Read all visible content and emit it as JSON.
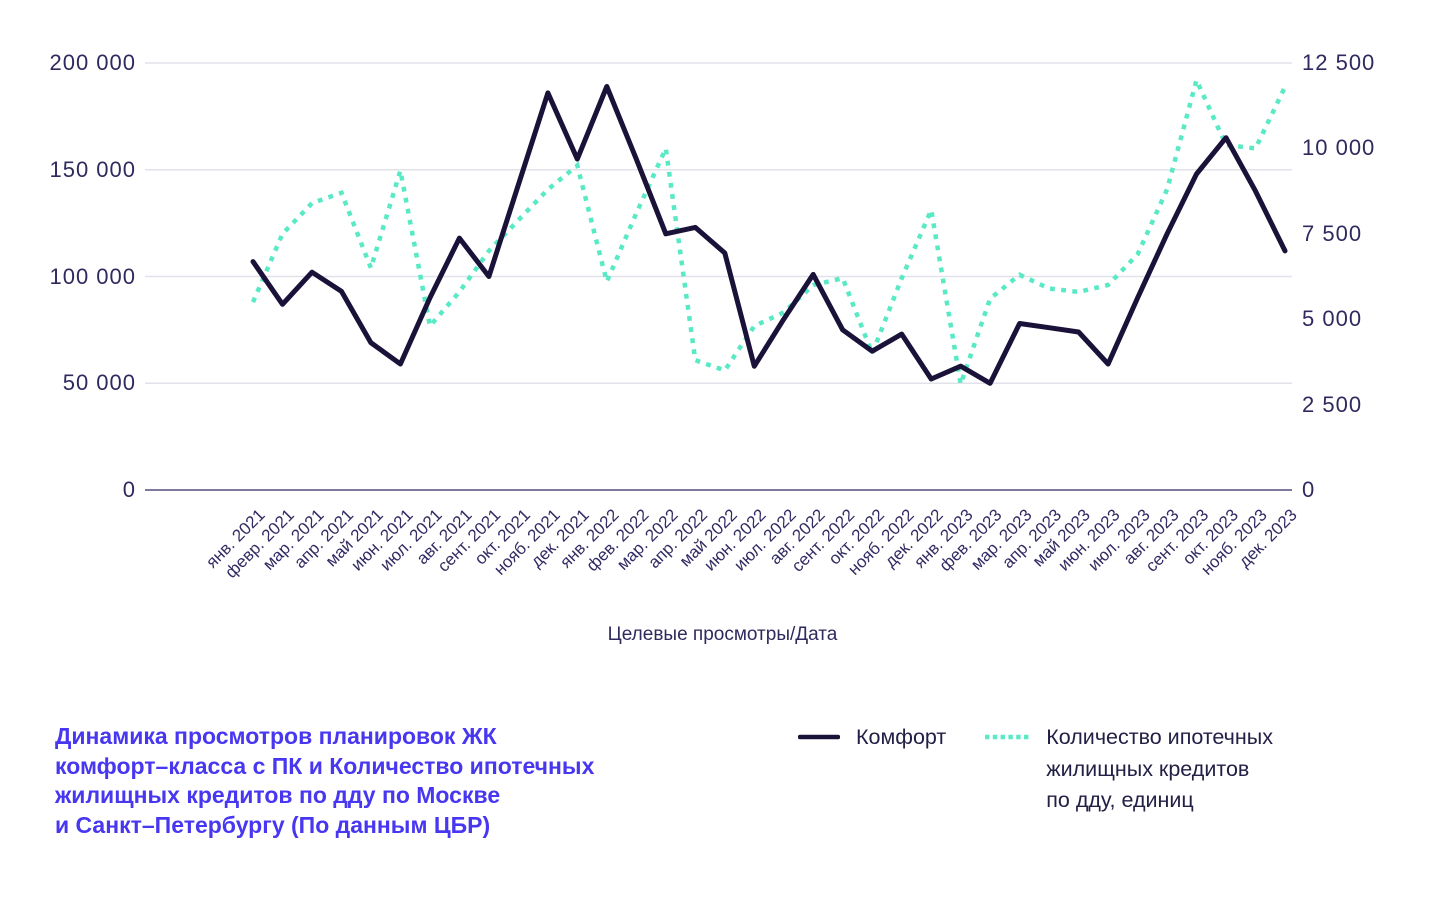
{
  "chart_data": {
    "type": "line",
    "title": "Динамика просмотров планировок ЖК комфорт–класса с ПК и Количество ипотечных жилищных кредитов по дду по Москве и Санкт–Петербургу (По данным ЦБР)",
    "xlabel": "Целевые просмотры/Дата",
    "grid": true,
    "legend_position": "bottom",
    "categories": [
      "янв. 2021",
      "февр. 2021",
      "мар. 2021",
      "апр. 2021",
      "май 2021",
      "июн. 2021",
      "июл. 2021",
      "авг. 2021",
      "сент. 2021",
      "окт. 2021",
      "нояб. 2021",
      "дек. 2021",
      "янв. 2022",
      "фев. 2022",
      "мар. 2022",
      "апр. 2022",
      "май 2022",
      "июн. 2022",
      "июл. 2022",
      "авг. 2022",
      "сент. 2022",
      "окт. 2022",
      "нояб. 2022",
      "дек. 2022",
      "янв. 2023",
      "фев. 2023",
      "мар. 2023",
      "апр. 2023",
      "май 2023",
      "июн. 2023",
      "июл. 2023",
      "авг. 2023",
      "сент. 2023",
      "окт. 2023",
      "нояб. 2023",
      "дек. 2023"
    ],
    "series": [
      {
        "name": "Комфорт",
        "axis": "left",
        "style": "solid",
        "color": "#1a1238",
        "values": [
          107000,
          87000,
          102000,
          93000,
          69000,
          59000,
          90000,
          118000,
          100000,
          143000,
          186000,
          155000,
          189000,
          155000,
          120000,
          123000,
          111000,
          58000,
          80000,
          101000,
          75000,
          65000,
          73000,
          52000,
          58000,
          50000,
          78000,
          76000,
          74000,
          59000,
          90000,
          120000,
          148000,
          165000,
          140000,
          112000
        ]
      },
      {
        "name": "Количество ипотечных жилищных кредитов по дду, единиц",
        "axis": "right",
        "style": "dotted",
        "color": "#59e9c5",
        "values": [
          5500,
          7500,
          8400,
          8700,
          6500,
          9350,
          4800,
          5800,
          7000,
          7900,
          8800,
          9500,
          6100,
          8100,
          10000,
          3800,
          3500,
          4800,
          5200,
          6000,
          6200,
          4000,
          6200,
          8200,
          3100,
          5600,
          6300,
          5900,
          5800,
          6000,
          6900,
          8800,
          12000,
          10100,
          10000,
          11800
        ]
      }
    ],
    "left_axis": {
      "max": 200000,
      "ticks": [
        "200 000",
        "150 000",
        "100 000",
        "50 000",
        "0"
      ],
      "values": [
        200000,
        150000,
        100000,
        50000,
        0
      ]
    },
    "right_axis": {
      "max": 12500,
      "ticks": [
        "12 500",
        "10 000",
        "7 500",
        "5 000",
        "2 500",
        "0"
      ],
      "values": [
        12500,
        10000,
        7500,
        5000,
        2500,
        0
      ]
    }
  },
  "caption": {
    "lines": [
      "Динамика просмотров планировок ЖК",
      "комфорт–класса с ПК и Количество ипотечных",
      "жилищных кредитов по дду по Москве",
      "и Санкт–Петербургу (По данным ЦБР)"
    ]
  },
  "legend": {
    "comfort_label": "Комфорт",
    "mortgage_lines": [
      "Количество ипотечных",
      "жилищных кредитов",
      "по дду, единиц"
    ]
  },
  "colors": {
    "comfort_line": "#1a1238",
    "mortgage_line": "#59e9c5",
    "gridline": "#e2e2ea",
    "axis_line": "#534d7e",
    "tick_text": "#2f2a5e",
    "title_text": "#4837f0"
  }
}
